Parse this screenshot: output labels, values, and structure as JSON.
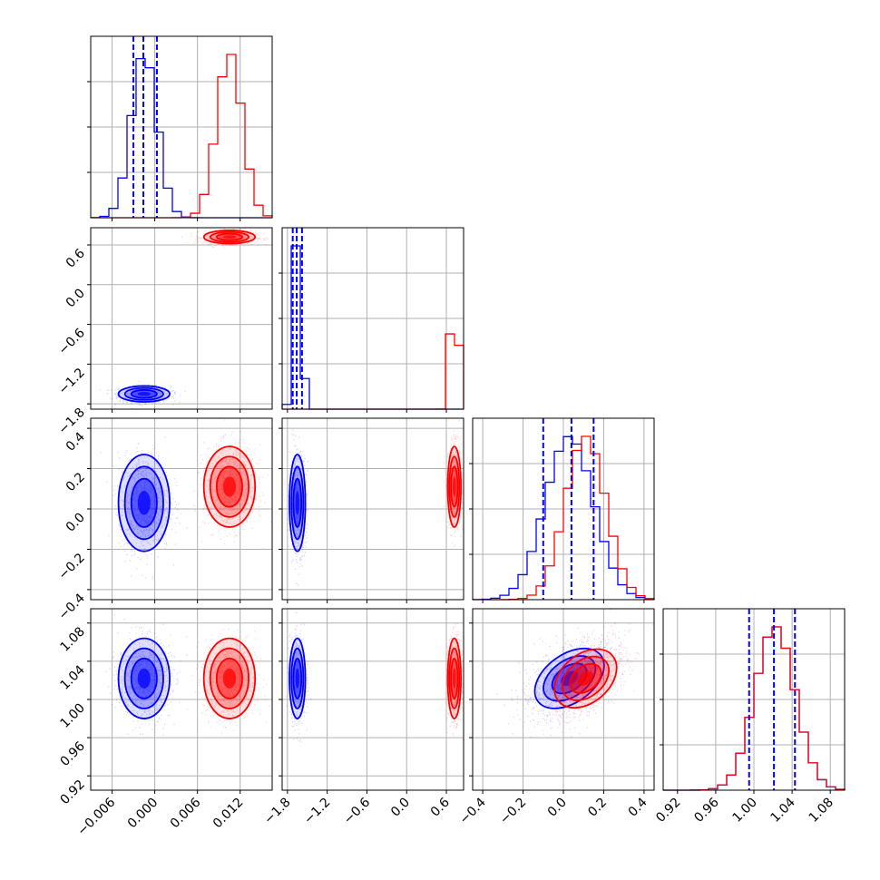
{
  "chart_data": {
    "type": "corner",
    "grid": true,
    "colors": {
      "blue": "#0000ff",
      "red": "#ff0000"
    },
    "parameters": [
      {
        "range": [
          -0.009,
          0.0165
        ],
        "ticks": [
          -0.006,
          0.0,
          0.006,
          0.012
        ],
        "tick_labels": [
          "−0.006",
          "0.000",
          "0.006",
          "0.012"
        ]
      },
      {
        "range": [
          -1.88,
          0.86
        ],
        "ticks": [
          -1.8,
          -1.2,
          -0.6,
          0.0,
          0.6
        ],
        "tick_labels": [
          "−1.8",
          "−1.2",
          "−0.6",
          "0.0",
          "0.6"
        ]
      },
      {
        "range": [
          -0.45,
          0.45
        ],
        "ticks": [
          -0.4,
          -0.2,
          0.0,
          0.2,
          0.4
        ],
        "tick_labels": [
          "−0.4",
          "−0.2",
          "0.0",
          "0.2",
          "0.4"
        ]
      },
      {
        "range": [
          0.905,
          1.095
        ],
        "ticks": [
          0.92,
          0.96,
          1.0,
          1.04,
          1.08
        ],
        "tick_labels": [
          "0.92",
          "0.96",
          "1.00",
          "1.04",
          "1.08"
        ]
      }
    ],
    "series": [
      {
        "color": "blue",
        "means": [
          -0.0015,
          -1.65,
          0.03,
          1.022
        ],
        "sigmas": [
          0.0018,
          0.06,
          0.12,
          0.021
        ],
        "corr_23": 0.5,
        "quantiles": [
          [
            -0.003,
            -0.0016,
            0.0003
          ],
          [
            -1.72,
            -1.66,
            -1.58
          ],
          [
            -0.1,
            0.04,
            0.15
          ],
          [
            0.995,
            1.021,
            1.043
          ]
        ]
      },
      {
        "color": "red",
        "means": [
          0.0105,
          0.72,
          0.11,
          1.022
        ],
        "sigmas": [
          0.0018,
          0.05,
          0.1,
          0.021
        ],
        "corr_23": 0.5
      }
    ]
  }
}
